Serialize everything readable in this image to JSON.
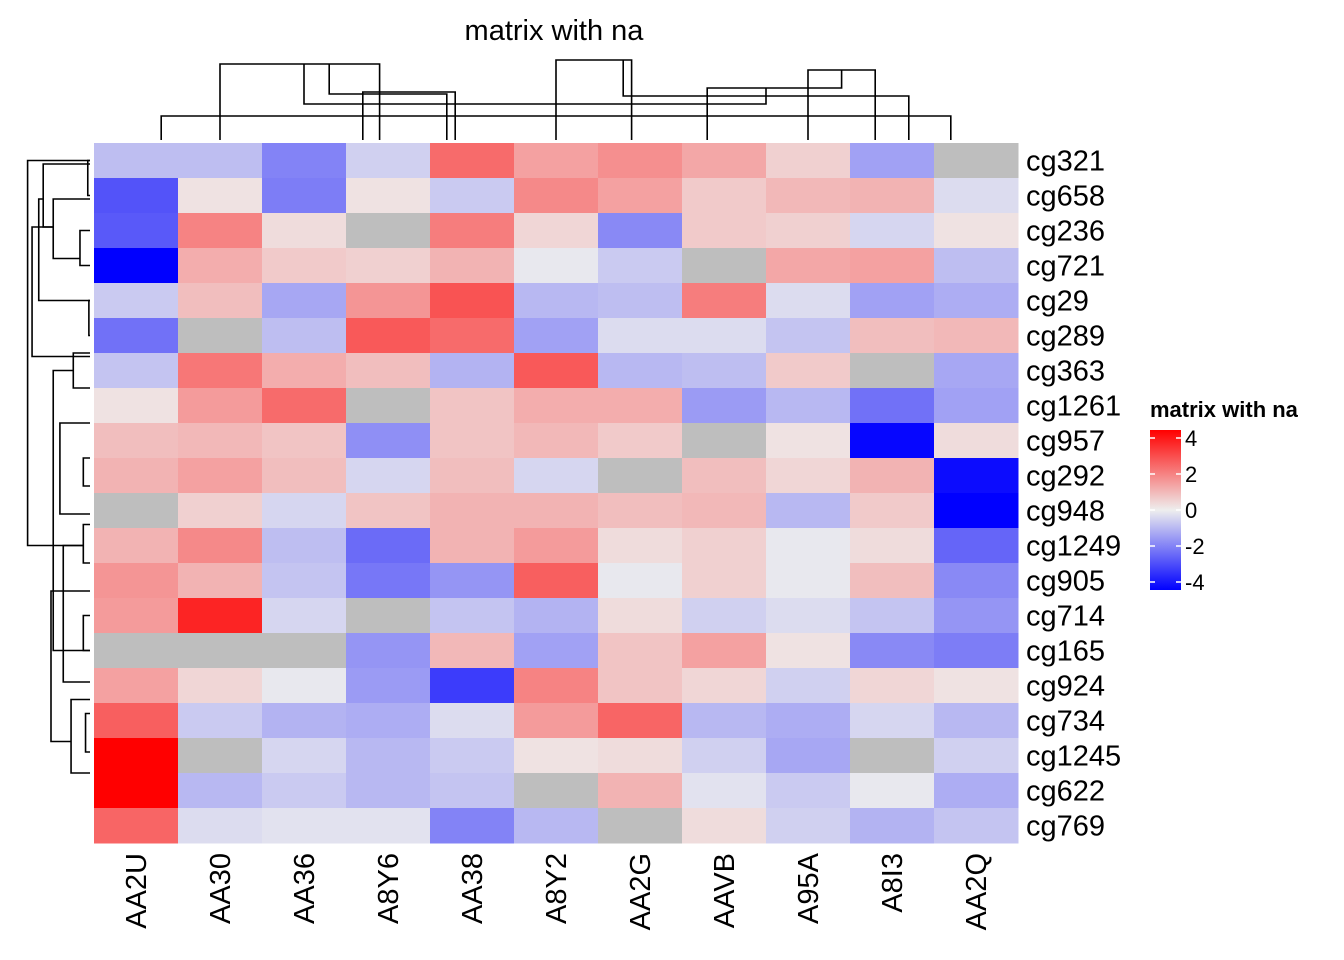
{
  "chart_data": {
    "type": "heatmap",
    "title": "matrix with na",
    "columns": [
      "AA2U",
      "AA30",
      "AA36",
      "A8Y6",
      "AA38",
      "A8Y2",
      "AA2G",
      "AAVB",
      "A95A",
      "A8I3",
      "AA2Q"
    ],
    "rows": [
      "cg321",
      "cg658",
      "cg236",
      "cg721",
      "cg29",
      "cg289",
      "cg363",
      "cg1261",
      "cg957",
      "cg292",
      "cg948",
      "cg1249",
      "cg905",
      "cg714",
      "cg165",
      "cg924",
      "cg734",
      "cg1245",
      "cg622",
      "cg769"
    ],
    "values": [
      [
        -0.8,
        -0.8,
        -1.8,
        -0.5,
        2.2,
        1.3,
        1.6,
        1.2,
        0.5,
        -1.3,
        null
      ],
      [
        -2.6,
        0.2,
        -1.9,
        0.2,
        -0.6,
        1.7,
        1.3,
        0.6,
        0.9,
        1.0,
        -0.3
      ],
      [
        -2.5,
        1.8,
        0.3,
        null,
        1.9,
        0.4,
        -1.7,
        0.6,
        0.5,
        -0.4,
        0.2
      ],
      [
        -4.2,
        1.1,
        0.6,
        0.5,
        1.0,
        -0.1,
        -0.6,
        null,
        1.2,
        1.3,
        -0.8
      ],
      [
        -0.6,
        0.8,
        -1.2,
        1.5,
        2.6,
        -0.9,
        -0.8,
        1.9,
        -0.3,
        -1.3,
        -1.1
      ],
      [
        -2.1,
        null,
        -0.8,
        2.5,
        2.2,
        -1.3,
        -0.3,
        -0.3,
        -0.7,
        0.8,
        0.9
      ],
      [
        -0.7,
        2.0,
        1.1,
        0.8,
        -1.0,
        2.5,
        -0.9,
        -0.8,
        0.6,
        null,
        -1.2
      ],
      [
        0.2,
        1.4,
        2.2,
        null,
        0.7,
        1.1,
        1.1,
        -1.4,
        -0.9,
        -2.1,
        -1.3
      ],
      [
        0.8,
        0.9,
        0.7,
        -1.6,
        0.7,
        0.9,
        0.6,
        null,
        0.2,
        -3.9,
        0.3
      ],
      [
        1.0,
        1.3,
        0.8,
        -0.4,
        0.8,
        -0.4,
        null,
        0.8,
        0.4,
        1.0,
        -3.8
      ],
      [
        null,
        0.5,
        -0.4,
        0.7,
        1.0,
        1.0,
        0.8,
        0.9,
        -0.9,
        0.6,
        -4.3
      ],
      [
        1.0,
        1.7,
        -0.8,
        -2.2,
        1.0,
        1.4,
        0.3,
        0.5,
        -0.1,
        0.3,
        -2.3
      ],
      [
        1.5,
        1.0,
        -0.7,
        -2.0,
        -1.5,
        2.4,
        -0.1,
        0.5,
        -0.1,
        0.8,
        -1.7
      ],
      [
        1.4,
        3.4,
        -0.4,
        null,
        -0.7,
        -1.0,
        0.3,
        -0.5,
        -0.3,
        -0.7,
        -1.5
      ],
      [
        null,
        null,
        null,
        -1.5,
        0.9,
        -1.3,
        0.7,
        1.3,
        0.2,
        -1.7,
        -1.9
      ],
      [
        1.3,
        0.4,
        -0.1,
        -1.4,
        -3.0,
        1.8,
        0.7,
        0.4,
        -0.5,
        0.4,
        0.2
      ],
      [
        2.4,
        -0.6,
        -1.0,
        -1.1,
        -0.3,
        1.4,
        2.3,
        -0.9,
        -1.1,
        -0.4,
        -0.9
      ],
      [
        4.3,
        null,
        -0.4,
        -0.9,
        -0.6,
        0.2,
        0.3,
        -0.5,
        -1.2,
        null,
        -0.5
      ],
      [
        4.5,
        -0.9,
        -0.6,
        -0.9,
        -0.7,
        null,
        1.0,
        -0.2,
        -0.6,
        -0.1,
        -1.1
      ],
      [
        2.3,
        -0.3,
        -0.2,
        -0.2,
        -1.8,
        -0.9,
        null,
        0.3,
        -0.5,
        -1.0,
        -0.7
      ]
    ],
    "na_color": "#BEBEBE",
    "color_scale": {
      "min": -4,
      "mid": 0,
      "max": 4,
      "low_color": "#0000FF",
      "mid_color": "#EEEEEE",
      "high_color": "#FF0000"
    },
    "legend": {
      "title": "matrix with na",
      "ticks": [
        4,
        2,
        0,
        -2,
        -4
      ],
      "position": "right"
    },
    "col_dendrogram": [
      [
        0.8,
        1.2,
        10.2
      ],
      [
        2.5,
        1.8,
        8.0
      ],
      [
        6.3,
        2.2,
        9.7
      ],
      [
        2.8,
        2.3,
        4.2
      ],
      [
        4.3,
        2.4,
        3.2
      ],
      [
        7.3,
        2.6,
        8.9
      ],
      [
        8.5,
        3.5,
        9.3
      ],
      [
        1.5,
        3.8,
        3.4
      ],
      [
        5.5,
        4.0,
        6.4
      ]
    ],
    "row_dendrogram": [
      [
        0.5,
        1.4,
        11.5
      ],
      [
        2.4,
        1.8,
        6.1
      ],
      [
        1.6,
        2.4,
        4.5
      ],
      [
        0.6,
        2.8,
        2.4
      ],
      [
        1.6,
        3.7,
        3.3
      ],
      [
        6.5,
        3.7,
        14.5
      ],
      [
        12.8,
        3.5,
        17.1
      ],
      [
        8.0,
        4.3,
        10.6
      ],
      [
        11.5,
        4.6,
        15.4
      ],
      [
        15.9,
        5.3,
        18.0
      ],
      [
        6.0,
        5.5,
        7.0
      ],
      [
        2.5,
        6.1,
        3.5
      ],
      [
        9.0,
        6.4,
        9.8
      ],
      [
        10.9,
        6.4,
        12.0
      ],
      [
        13.5,
        6.4,
        14.5
      ],
      [
        16.3,
        6.6,
        17.4
      ],
      [
        0.5,
        6.8,
        1.5
      ],
      [
        4.5,
        6.9,
        5.5
      ]
    ]
  }
}
